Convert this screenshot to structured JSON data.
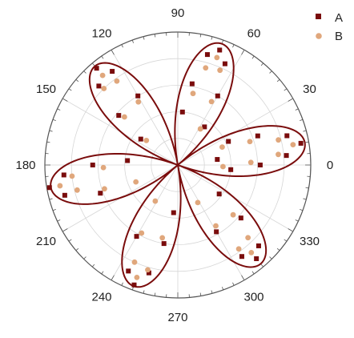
{
  "chart_data": {
    "type": "scatter",
    "subtype": "polar",
    "title": "",
    "angle_unit": "degrees",
    "angular_ticks": [
      "0",
      "30",
      "60",
      "90",
      "120",
      "150",
      "180",
      "210",
      "240",
      "270",
      "300",
      "330"
    ],
    "angular_tick_values": [
      0,
      30,
      60,
      90,
      120,
      150,
      180,
      210,
      240,
      270,
      300,
      330
    ],
    "radial_range": [
      0,
      1
    ],
    "radial_grid": [
      0.2,
      0.4,
      0.6,
      0.8,
      1.0
    ],
    "grid": true,
    "legend_position": "top-right",
    "fit_curve": {
      "equation_form": "r = |cos(3 * (theta - 10))|",
      "petal_axes_deg": [
        10,
        70,
        130,
        190,
        250,
        310
      ],
      "color": "#7a0c0c"
    },
    "series": [
      {
        "name": "A",
        "marker": "square",
        "color": "#7a0c0c",
        "points": [
          {
            "theta": 10,
            "r": 0.94
          },
          {
            "theta": 5,
            "r": 0.82
          },
          {
            "theta": 15,
            "r": 0.85
          },
          {
            "theta": 0,
            "r": 0.62
          },
          {
            "theta": 20,
            "r": 0.64
          },
          {
            "theta": 355,
            "r": 0.4
          },
          {
            "theta": 25,
            "r": 0.42
          },
          {
            "theta": 8,
            "r": 0.3
          },
          {
            "theta": 70,
            "r": 0.92
          },
          {
            "theta": 65,
            "r": 0.84
          },
          {
            "theta": 75,
            "r": 0.86
          },
          {
            "theta": 60,
            "r": 0.6
          },
          {
            "theta": 80,
            "r": 0.62
          },
          {
            "theta": 55,
            "r": 0.35
          },
          {
            "theta": 85,
            "r": 0.4
          },
          {
            "theta": 130,
            "r": 0.95
          },
          {
            "theta": 125,
            "r": 0.86
          },
          {
            "theta": 135,
            "r": 0.84
          },
          {
            "theta": 120,
            "r": 0.6
          },
          {
            "theta": 140,
            "r": 0.58
          },
          {
            "theta": 145,
            "r": 0.34
          },
          {
            "theta": 190,
            "r": 0.98
          },
          {
            "theta": 185,
            "r": 0.86
          },
          {
            "theta": 195,
            "r": 0.88
          },
          {
            "theta": 180,
            "r": 0.64
          },
          {
            "theta": 200,
            "r": 0.62
          },
          {
            "theta": 175,
            "r": 0.38
          },
          {
            "theta": 250,
            "r": 0.96
          },
          {
            "theta": 245,
            "r": 0.88
          },
          {
            "theta": 255,
            "r": 0.84
          },
          {
            "theta": 240,
            "r": 0.62
          },
          {
            "theta": 260,
            "r": 0.6
          },
          {
            "theta": 265,
            "r": 0.36
          },
          {
            "theta": 310,
            "r": 0.92
          },
          {
            "theta": 305,
            "r": 0.84
          },
          {
            "theta": 315,
            "r": 0.86
          },
          {
            "theta": 300,
            "r": 0.58
          },
          {
            "theta": 320,
            "r": 0.62
          },
          {
            "theta": 325,
            "r": 0.38
          }
        ]
      },
      {
        "name": "B",
        "marker": "circle",
        "color": "#e0a77c",
        "points": [
          {
            "theta": 10,
            "r": 0.88
          },
          {
            "theta": 6,
            "r": 0.76
          },
          {
            "theta": 14,
            "r": 0.78
          },
          {
            "theta": 2,
            "r": 0.55
          },
          {
            "theta": 18,
            "r": 0.57
          },
          {
            "theta": 358,
            "r": 0.34
          },
          {
            "theta": 22,
            "r": 0.36
          },
          {
            "theta": 70,
            "r": 0.86
          },
          {
            "theta": 66,
            "r": 0.78
          },
          {
            "theta": 74,
            "r": 0.76
          },
          {
            "theta": 62,
            "r": 0.54
          },
          {
            "theta": 78,
            "r": 0.55
          },
          {
            "theta": 58,
            "r": 0.32
          },
          {
            "theta": 130,
            "r": 0.88
          },
          {
            "theta": 126,
            "r": 0.78
          },
          {
            "theta": 134,
            "r": 0.8
          },
          {
            "theta": 122,
            "r": 0.56
          },
          {
            "theta": 138,
            "r": 0.54
          },
          {
            "theta": 142,
            "r": 0.3
          },
          {
            "theta": 190,
            "r": 0.9
          },
          {
            "theta": 186,
            "r": 0.8
          },
          {
            "theta": 194,
            "r": 0.78
          },
          {
            "theta": 182,
            "r": 0.56
          },
          {
            "theta": 198,
            "r": 0.58
          },
          {
            "theta": 202,
            "r": 0.34
          },
          {
            "theta": 250,
            "r": 0.9
          },
          {
            "theta": 246,
            "r": 0.8
          },
          {
            "theta": 254,
            "r": 0.82
          },
          {
            "theta": 242,
            "r": 0.58
          },
          {
            "theta": 258,
            "r": 0.56
          },
          {
            "theta": 238,
            "r": 0.32
          },
          {
            "theta": 310,
            "r": 0.86
          },
          {
            "theta": 306,
            "r": 0.78
          },
          {
            "theta": 314,
            "r": 0.76
          },
          {
            "theta": 302,
            "r": 0.54
          },
          {
            "theta": 318,
            "r": 0.56
          },
          {
            "theta": 298,
            "r": 0.32
          }
        ]
      }
    ],
    "legend": [
      {
        "label": "A",
        "marker": "square",
        "color": "#7a0c0c"
      },
      {
        "label": "B",
        "marker": "circle",
        "color": "#e0a77c"
      }
    ]
  }
}
